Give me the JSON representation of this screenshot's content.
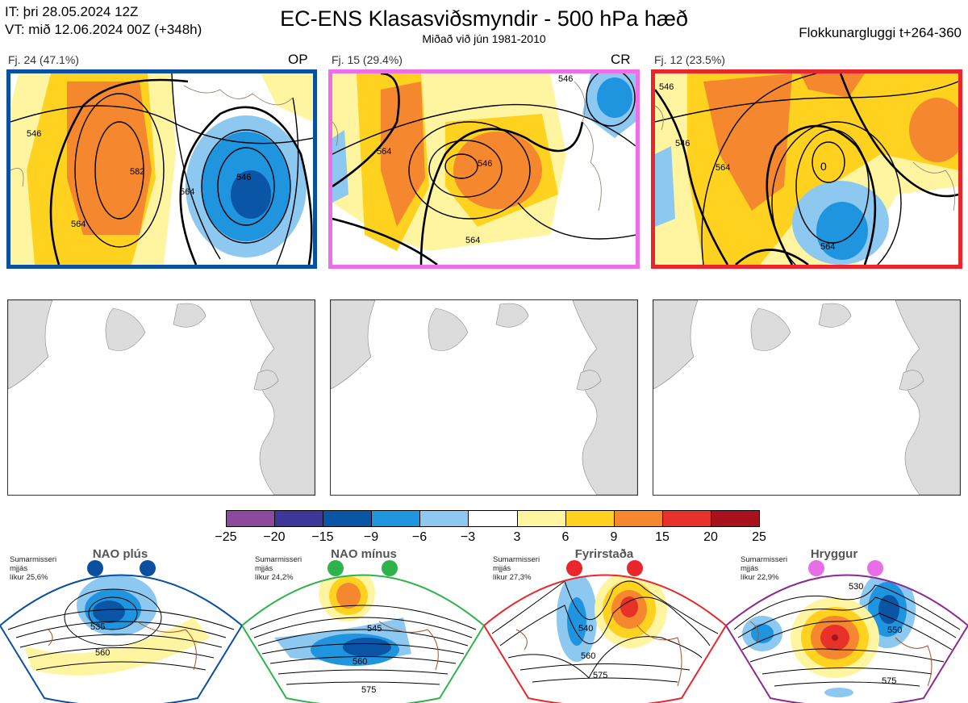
{
  "header": {
    "it_line": "IT: þri 28.05.2024 12Z",
    "vt_line": "VT: mið 12.06.2024 00Z  (+348h)",
    "title": "EC-ENS Klasasviðsmyndir - 500 hPa hæð",
    "subtitle": "Miðað við jún 1981-2010",
    "window": "Flokkunargluggi t+264-360"
  },
  "clusters": [
    {
      "label": "Fj. 24 (47.1%)",
      "tag": "OP",
      "border_color": "#0a4fa0",
      "contours": [
        "546",
        "564",
        "582",
        "546",
        "564"
      ]
    },
    {
      "label": "Fj. 15 (29.4%)",
      "tag": "CR",
      "border_color": "#ee6ee8",
      "contours": [
        "564",
        "546",
        "564",
        "546"
      ]
    },
    {
      "label": "Fj. 12 (23.5%)",
      "tag": "",
      "border_color": "#e8262b",
      "contours": [
        "546",
        "564",
        "546",
        "0",
        "564"
      ]
    }
  ],
  "colorbar": {
    "ticks": [
      "−25",
      "−20",
      "−15",
      "−9",
      "−6",
      "−3",
      "3",
      "6",
      "9",
      "15",
      "20",
      "25"
    ],
    "colors": [
      "#8d4a9c",
      "#3c3799",
      "#0b55a6",
      "#1f95e0",
      "#8cc8f0",
      "#ffffff",
      "#fff5a1",
      "#ffd21f",
      "#f5882f",
      "#e8312a",
      "#a8121c"
    ]
  },
  "regimes": [
    {
      "name": "NAO plús",
      "note": "Sumarmisseri\nmjjás\nlíkur 25,6%",
      "dot_color": "#0a4fa0",
      "border_color": "#0a4fa0",
      "contours": [
        "535",
        "560"
      ]
    },
    {
      "name": "NAO mínus",
      "note": "Sumarmisseri\nmjjás\nlíkur 24,2%",
      "dot_color": "#2eb34a",
      "border_color": "#2eb34a",
      "contours": [
        "545",
        "560",
        "575"
      ]
    },
    {
      "name": "Fyrirstaða",
      "note": "Sumarmisseri\nmjjás\nlíkur 27,3%",
      "dot_color": "#e8262b",
      "border_color": "#e8262b",
      "contours": [
        "540",
        "560",
        "575"
      ]
    },
    {
      "name": "Hryggur",
      "note": "Sumarmisseri\nmjjás\nlíkur 22,9%",
      "dot_color": "#e86ee8",
      "border_color": "#8a2a8f",
      "contours": [
        "530",
        "550",
        "575"
      ]
    }
  ]
}
